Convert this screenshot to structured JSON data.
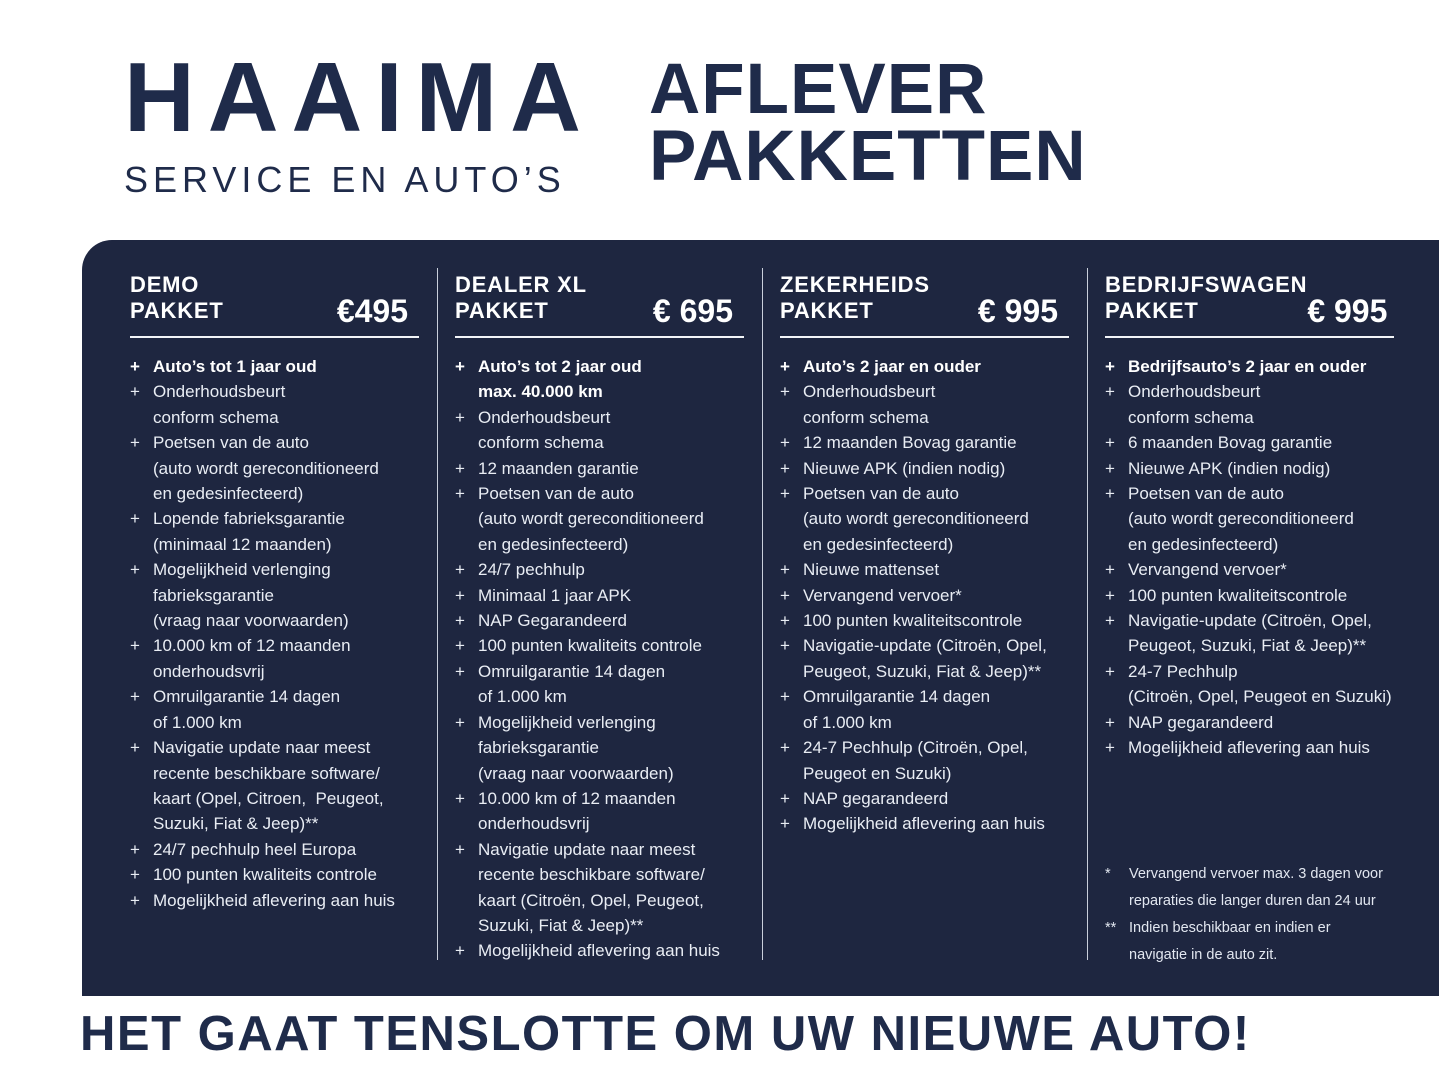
{
  "colors": {
    "navy_panel": "#1E2640",
    "navy_text": "#1F2B4A",
    "text_light": "#E9EDF4",
    "white": "#FFFFFF",
    "divider": "#C9CFDB"
  },
  "brand": {
    "name": "HAAIMA",
    "subtitle": "SERVICE EN AUTO’S"
  },
  "title": {
    "line1": "AFLEVER",
    "line2": "PAKKETTEN"
  },
  "list_marker": "+",
  "packages": [
    {
      "title_lines": [
        "DEMO",
        "PAKKET"
      ],
      "price": "€495",
      "items": [
        {
          "bold": true,
          "lines": [
            "Auto’s tot 1 jaar oud"
          ]
        },
        {
          "bold": false,
          "lines": [
            "Onderhoudsbeurt",
            "conform schema"
          ]
        },
        {
          "bold": false,
          "lines": [
            "Poetsen van de auto",
            "(auto wordt gereconditioneerd",
            "en gedesinfecteerd)"
          ]
        },
        {
          "bold": false,
          "lines": [
            "Lopende fabrieksgarantie",
            "(minimaal 12 maanden)"
          ]
        },
        {
          "bold": false,
          "lines": [
            "Mogelijkheid verlenging",
            "fabrieksgarantie",
            "(vraag naar voorwaarden)"
          ]
        },
        {
          "bold": false,
          "lines": [
            "10.000 km of 12 maanden",
            "onderhoudsvrij"
          ]
        },
        {
          "bold": false,
          "lines": [
            "Omruilgarantie 14 dagen",
            "of 1.000 km"
          ]
        },
        {
          "bold": false,
          "lines": [
            "Navigatie update naar meest",
            "recente beschikbare software/",
            "kaart (Opel, Citroen,  Peugeot,",
            "Suzuki, Fiat & Jeep)**"
          ]
        },
        {
          "bold": false,
          "lines": [
            "24/7 pechhulp heel Europa"
          ]
        },
        {
          "bold": false,
          "lines": [
            "100 punten kwaliteits controle"
          ]
        },
        {
          "bold": false,
          "lines": [
            "Mogelijkheid aflevering aan huis"
          ]
        }
      ]
    },
    {
      "title_lines": [
        "DEALER XL",
        "PAKKET"
      ],
      "price": "€ 695",
      "items": [
        {
          "bold": true,
          "lines": [
            "Auto’s tot 2 jaar oud",
            "max. 40.000 km"
          ]
        },
        {
          "bold": false,
          "lines": [
            "Onderhoudsbeurt",
            "conform schema"
          ]
        },
        {
          "bold": false,
          "lines": [
            "12 maanden garantie"
          ]
        },
        {
          "bold": false,
          "lines": [
            "Poetsen van de auto",
            "(auto wordt gereconditioneerd",
            "en gedesinfecteerd)"
          ]
        },
        {
          "bold": false,
          "lines": [
            "24/7 pechhulp"
          ]
        },
        {
          "bold": false,
          "lines": [
            "Minimaal 1 jaar APK"
          ]
        },
        {
          "bold": false,
          "lines": [
            "NAP Gegarandeerd"
          ]
        },
        {
          "bold": false,
          "lines": [
            "100 punten kwaliteits controle"
          ]
        },
        {
          "bold": false,
          "lines": [
            "Omruilgarantie 14 dagen",
            "of 1.000 km"
          ]
        },
        {
          "bold": false,
          "lines": [
            "Mogelijkheid verlenging",
            "fabrieksgarantie",
            "(vraag naar voorwaarden)"
          ]
        },
        {
          "bold": false,
          "lines": [
            "10.000 km of 12 maanden",
            "onderhoudsvrij"
          ]
        },
        {
          "bold": false,
          "lines": [
            "Navigatie update naar meest",
            "recente beschikbare software/",
            "kaart (Citroën, Opel, Peugeot,",
            "Suzuki, Fiat & Jeep)**"
          ]
        },
        {
          "bold": false,
          "lines": [
            "Mogelijkheid aflevering aan huis"
          ]
        }
      ]
    },
    {
      "title_lines": [
        "ZEKERHEIDS",
        "PAKKET"
      ],
      "price": "€ 995",
      "items": [
        {
          "bold": true,
          "lines": [
            "Auto’s 2 jaar en ouder"
          ]
        },
        {
          "bold": false,
          "lines": [
            "Onderhoudsbeurt",
            "conform schema"
          ]
        },
        {
          "bold": false,
          "lines": [
            "12 maanden Bovag garantie"
          ]
        },
        {
          "bold": false,
          "lines": [
            "Nieuwe APK (indien nodig)"
          ]
        },
        {
          "bold": false,
          "lines": [
            "Poetsen van de auto",
            "(auto wordt gereconditioneerd",
            "en gedesinfecteerd)"
          ]
        },
        {
          "bold": false,
          "lines": [
            "Nieuwe mattenset"
          ]
        },
        {
          "bold": false,
          "lines": [
            "Vervangend vervoer*"
          ]
        },
        {
          "bold": false,
          "lines": [
            "100 punten kwaliteitscontrole"
          ]
        },
        {
          "bold": false,
          "lines": [
            "Navigatie-update (Citroën, Opel,",
            "Peugeot, Suzuki, Fiat & Jeep)**"
          ]
        },
        {
          "bold": false,
          "lines": [
            "Omruilgarantie 14 dagen",
            "of 1.000 km"
          ]
        },
        {
          "bold": false,
          "lines": [
            "24-7 Pechhulp (Citroën, Opel,",
            "Peugeot en Suzuki)"
          ]
        },
        {
          "bold": false,
          "lines": [
            "NAP gegarandeerd"
          ]
        },
        {
          "bold": false,
          "lines": [
            "Mogelijkheid aflevering aan huis"
          ]
        }
      ]
    },
    {
      "title_lines": [
        "BEDRIJFSWAGEN",
        "PAKKET"
      ],
      "price": "€ 995",
      "items": [
        {
          "bold": true,
          "lines": [
            "Bedrijfsauto’s 2 jaar en ouder"
          ]
        },
        {
          "bold": false,
          "lines": [
            "Onderhoudsbeurt",
            "conform schema"
          ]
        },
        {
          "bold": false,
          "lines": [
            "6 maanden Bovag garantie"
          ]
        },
        {
          "bold": false,
          "lines": [
            "Nieuwe APK (indien nodig)"
          ]
        },
        {
          "bold": false,
          "lines": [
            "Poetsen van de auto",
            "(auto wordt gereconditioneerd",
            "en gedesinfecteerd)"
          ]
        },
        {
          "bold": false,
          "lines": [
            "Vervangend vervoer*"
          ]
        },
        {
          "bold": false,
          "lines": [
            "100 punten kwaliteitscontrole"
          ]
        },
        {
          "bold": false,
          "lines": [
            "Navigatie-update (Citroën, Opel,",
            "Peugeot, Suzuki, Fiat & Jeep)**"
          ]
        },
        {
          "bold": false,
          "lines": [
            "24-7 Pechhulp",
            "(Citroën, Opel, Peugeot en Suzuki)"
          ]
        },
        {
          "bold": false,
          "lines": [
            "NAP gegarandeerd"
          ]
        },
        {
          "bold": false,
          "lines": [
            "Mogelijkheid aflevering aan huis"
          ]
        }
      ]
    }
  ],
  "footnotes": [
    {
      "marker": "*",
      "lines": [
        "Vervangend vervoer max. 3 dagen voor",
        "reparaties die langer duren dan 24 uur"
      ]
    },
    {
      "marker": "**",
      "lines": [
        "Indien beschikbaar en indien er",
        "navigatie in de auto zit."
      ]
    }
  ],
  "footer": {
    "tagline": "HET GAAT TENSLOTTE OM UW NIEUWE AUTO!"
  }
}
